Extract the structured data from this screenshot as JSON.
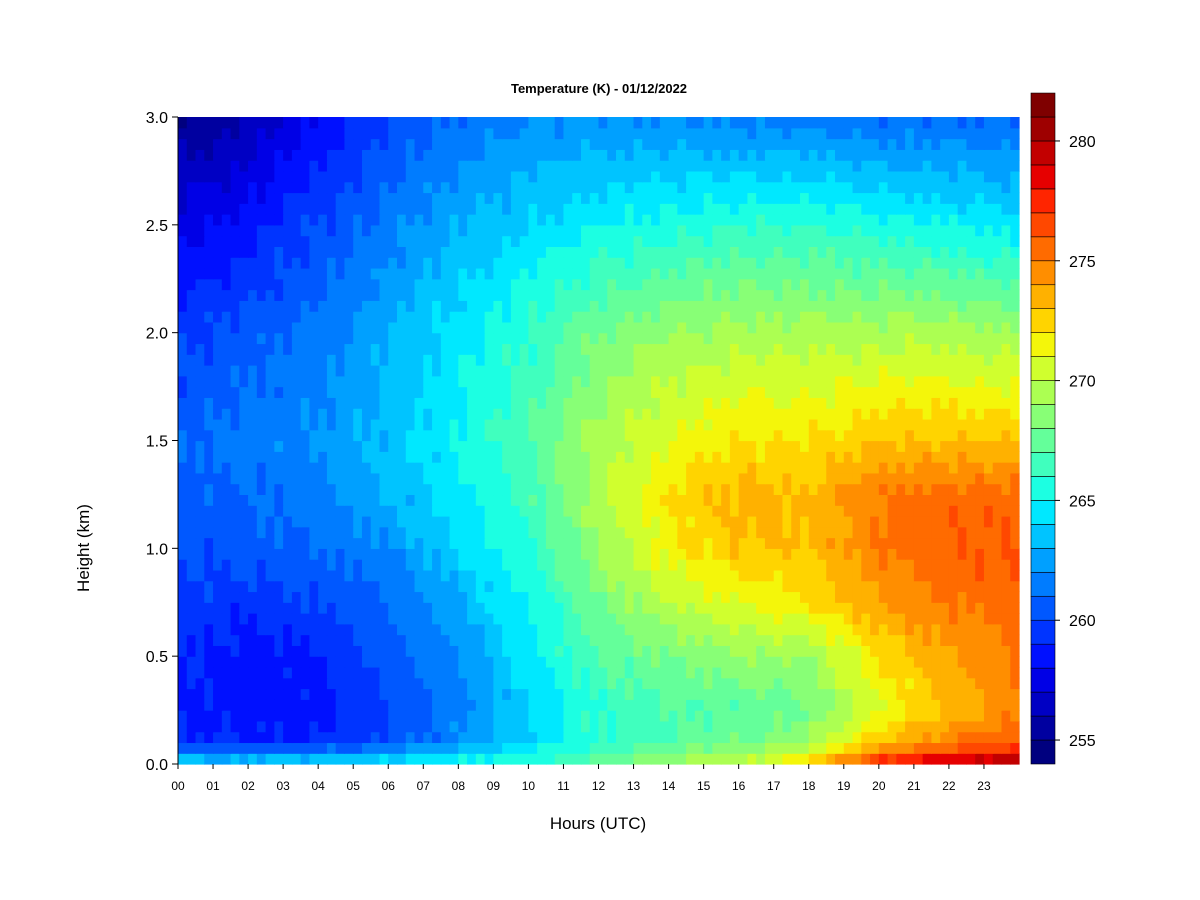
{
  "chart_data": {
    "type": "heatmap",
    "title": "Temperature (K) - 01/12/2022",
    "xlabel": "Hours (UTC)",
    "ylabel": "Height (km)",
    "xlim": [
      0,
      24
    ],
    "ylim": [
      0,
      3
    ],
    "x_ticks": [
      "00",
      "01",
      "02",
      "03",
      "04",
      "05",
      "06",
      "07",
      "08",
      "09",
      "10",
      "11",
      "12",
      "13",
      "14",
      "15",
      "16",
      "17",
      "18",
      "19",
      "20",
      "21",
      "22",
      "23"
    ],
    "y_ticks": [
      "0.0",
      "0.5",
      "1.0",
      "1.5",
      "2.0",
      "2.5",
      "3.0"
    ],
    "colorbar": {
      "min": 254,
      "max": 281,
      "step": 1,
      "tick_labels": [
        "255",
        "260",
        "265",
        "270",
        "275",
        "280"
      ],
      "colors": [
        "#00007f",
        "#0000a0",
        "#0000c4",
        "#0000e6",
        "#0010ff",
        "#0034ff",
        "#0058ff",
        "#007cff",
        "#00a0ff",
        "#00c4ff",
        "#00e8ff",
        "#1cffe2",
        "#40ffbe",
        "#64ff9a",
        "#88ff76",
        "#acff52",
        "#d0ff2e",
        "#f4f60a",
        "#ffd400",
        "#ffb100",
        "#ff8e00",
        "#ff6b00",
        "#ff4800",
        "#ff2500",
        "#e60000",
        "#c20000",
        "#9e0000",
        "#7f0000"
      ]
    },
    "x_hours": [
      0,
      2,
      4,
      6,
      8,
      10,
      12,
      14,
      16,
      18,
      20,
      22,
      24
    ],
    "heights_km": [
      0.0,
      0.05,
      0.1,
      0.25,
      0.5,
      0.75,
      1.0,
      1.25,
      1.5,
      2.0,
      2.5,
      3.0
    ],
    "values_K": [
      [
        264,
        264,
        264.5,
        265,
        265.5,
        266,
        268,
        269,
        270,
        273,
        278,
        280,
        281
      ],
      [
        262,
        262,
        262,
        263,
        264,
        265,
        267,
        268,
        269,
        271,
        275,
        277,
        278
      ],
      [
        259,
        259,
        259,
        260,
        262,
        264,
        266,
        267,
        268,
        269,
        273,
        275,
        276
      ],
      [
        259,
        258.5,
        258.5,
        260,
        261.5,
        264,
        266,
        267,
        267,
        268,
        271,
        273,
        275
      ],
      [
        259,
        258.5,
        259,
        260.5,
        262,
        264.5,
        267,
        268,
        269,
        269,
        272,
        274,
        275
      ],
      [
        259.5,
        259.5,
        260,
        261,
        263,
        265,
        268,
        270,
        271,
        272,
        274,
        275,
        275.5
      ],
      [
        260,
        260.5,
        261,
        262,
        264,
        266,
        269,
        271.5,
        273,
        273,
        275,
        276,
        276
      ],
      [
        260.5,
        261,
        261.5,
        263,
        264.5,
        266.5,
        269.5,
        272,
        273.5,
        273,
        275,
        275.5,
        275.5
      ],
      [
        261,
        261.5,
        262,
        263.5,
        265,
        267,
        269.5,
        271,
        272,
        272,
        273,
        273,
        273
      ],
      [
        259.5,
        260.5,
        261.5,
        263,
        264.5,
        266,
        268,
        269,
        269.5,
        269.5,
        269.5,
        269.5,
        269
      ],
      [
        257.5,
        258.5,
        260,
        261.5,
        263,
        264,
        265,
        265.5,
        266,
        266,
        265.5,
        265,
        264.5
      ],
      [
        255,
        256,
        258,
        260,
        261,
        262,
        262,
        262,
        261.5,
        261.5,
        261,
        261,
        261
      ]
    ]
  }
}
